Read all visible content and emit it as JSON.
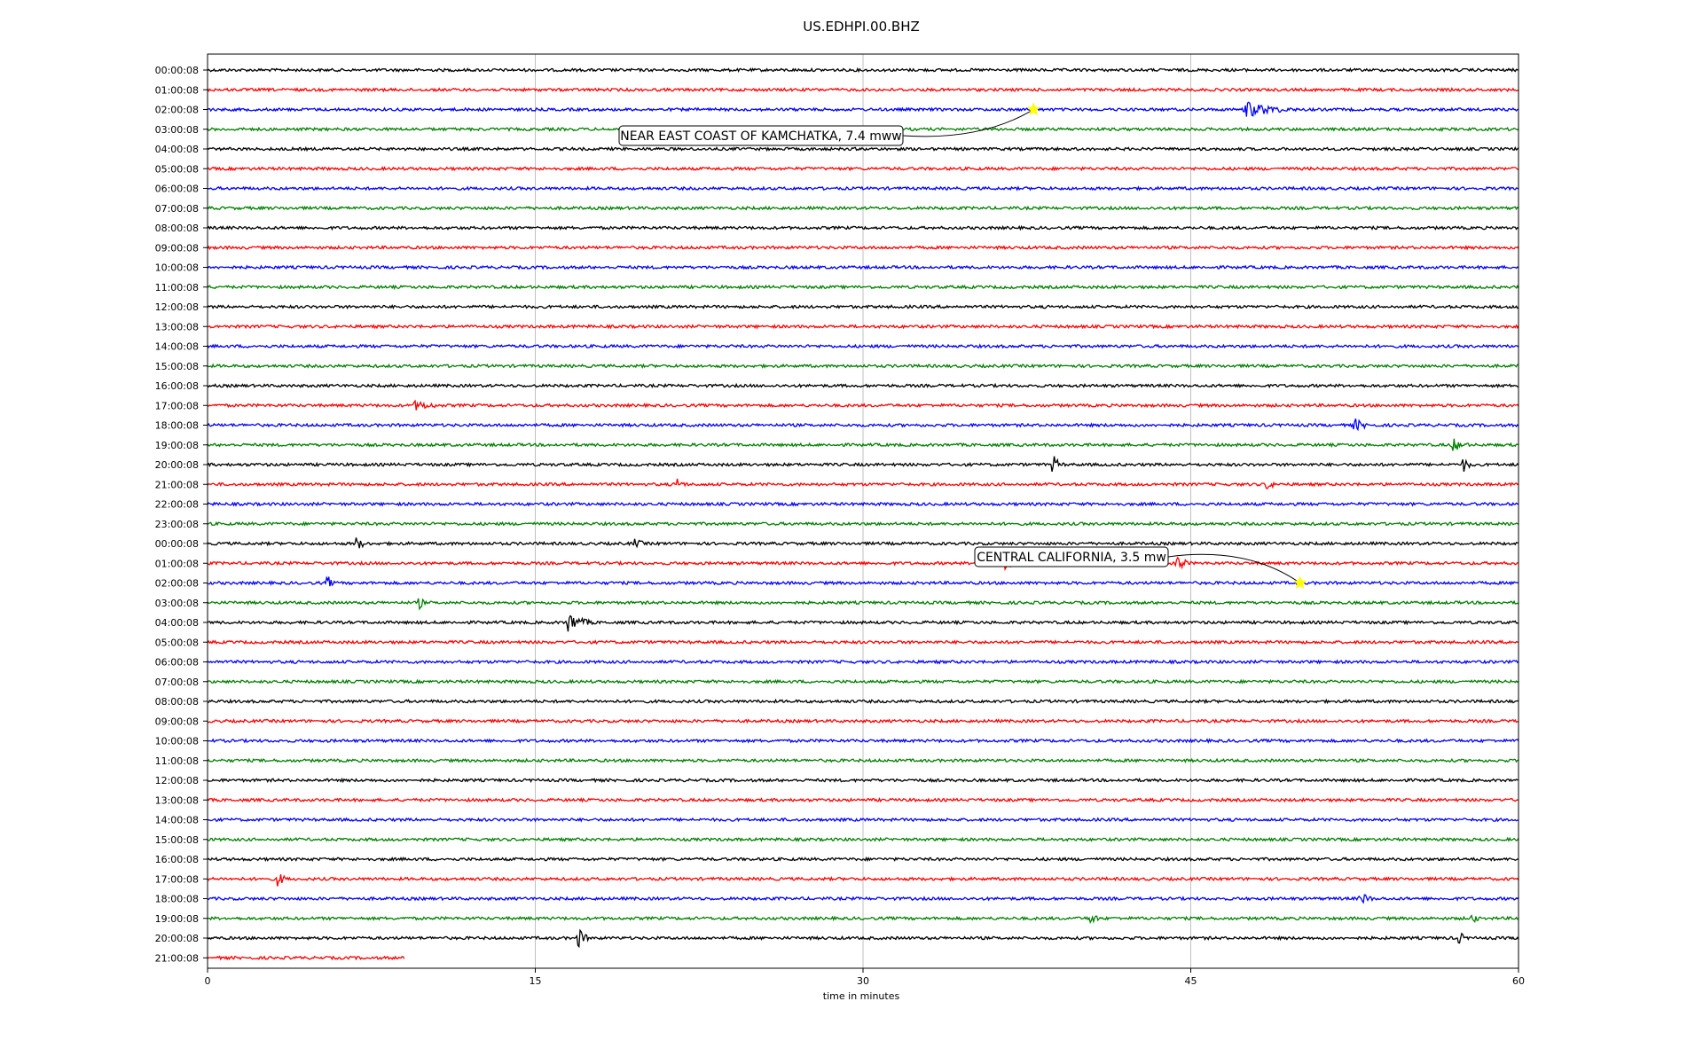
{
  "chart_data": {
    "type": "line",
    "title": "US.EDHPI.00.BHZ",
    "xlabel": "time in minutes",
    "ylabel": "",
    "xlim": [
      0,
      60
    ],
    "xticks": [
      0,
      15,
      30,
      45,
      60
    ],
    "grid": "vertical",
    "trace_colors": [
      "#000000",
      "#ff0000",
      "#0000ff",
      "#008000"
    ],
    "rows": [
      "00:00:08",
      "01:00:08",
      "02:00:08",
      "03:00:08",
      "04:00:08",
      "05:00:08",
      "06:00:08",
      "07:00:08",
      "08:00:08",
      "09:00:08",
      "10:00:08",
      "11:00:08",
      "12:00:08",
      "13:00:08",
      "14:00:08",
      "15:00:08",
      "16:00:08",
      "17:00:08",
      "18:00:08",
      "19:00:08",
      "20:00:08",
      "21:00:08",
      "22:00:08",
      "23:00:08",
      "00:00:08",
      "01:00:08",
      "02:00:08",
      "03:00:08",
      "04:00:08",
      "05:00:08",
      "06:00:08",
      "07:00:08",
      "08:00:08",
      "09:00:08",
      "10:00:08",
      "11:00:08",
      "12:00:08",
      "13:00:08",
      "14:00:08",
      "15:00:08",
      "16:00:08",
      "17:00:08",
      "18:00:08",
      "19:00:08",
      "20:00:08",
      "21:00:08"
    ],
    "last_row_end_minute": 9,
    "events": [
      {
        "row": 2,
        "minute": 47.5,
        "duration": 4,
        "amplitude": 10
      },
      {
        "row": 17,
        "minute": 9.5,
        "duration": 3,
        "amplitude": 6
      },
      {
        "row": 18,
        "minute": 52.5,
        "duration": 1.5,
        "amplitude": 8
      },
      {
        "row": 19,
        "minute": 57,
        "duration": 1.5,
        "amplitude": 8
      },
      {
        "row": 20,
        "minute": 38.7,
        "duration": 0.8,
        "amplitude": 12
      },
      {
        "row": 20,
        "minute": 57.5,
        "duration": 0.8,
        "amplitude": 9
      },
      {
        "row": 21,
        "minute": 21.5,
        "duration": 0.8,
        "amplitude": 9
      },
      {
        "row": 21,
        "minute": 48.5,
        "duration": 0.8,
        "amplitude": 8
      },
      {
        "row": 24,
        "minute": 6.8,
        "duration": 1.2,
        "amplitude": 8
      },
      {
        "row": 24,
        "minute": 19.5,
        "duration": 1.5,
        "amplitude": 6
      },
      {
        "row": 25,
        "minute": 36.5,
        "duration": 1.3,
        "amplitude": 8
      },
      {
        "row": 25,
        "minute": 44.4,
        "duration": 1,
        "amplitude": 11
      },
      {
        "row": 26,
        "minute": 5.5,
        "duration": 0.6,
        "amplitude": 9
      },
      {
        "row": 27,
        "minute": 9.7,
        "duration": 0.6,
        "amplitude": 8
      },
      {
        "row": 28,
        "minute": 16.5,
        "duration": 2,
        "amplitude": 12
      },
      {
        "row": 41,
        "minute": 3.2,
        "duration": 1,
        "amplitude": 9
      },
      {
        "row": 42,
        "minute": 52.8,
        "duration": 1.2,
        "amplitude": 8
      },
      {
        "row": 43,
        "minute": 40.4,
        "duration": 0.8,
        "amplitude": 9
      },
      {
        "row": 43,
        "minute": 57.9,
        "duration": 0.6,
        "amplitude": 8
      },
      {
        "row": 44,
        "minute": 17.0,
        "duration": 0.8,
        "amplitude": 13
      },
      {
        "row": 44,
        "minute": 57.3,
        "duration": 0.6,
        "amplitude": 9
      }
    ],
    "annotations": [
      {
        "text": "NEAR EAST COAST OF KAMCHATKA, 7.4 mww",
        "row": 2,
        "minute": 37.8
      },
      {
        "text": "CENTRAL CALIFORNIA, 3.5 mw",
        "row": 26,
        "minute": 50.0
      }
    ]
  }
}
